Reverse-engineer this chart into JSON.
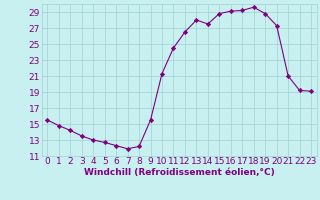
{
  "x": [
    0,
    1,
    2,
    3,
    4,
    5,
    6,
    7,
    8,
    9,
    10,
    11,
    12,
    13,
    14,
    15,
    16,
    17,
    18,
    19,
    20,
    21,
    22,
    23
  ],
  "y": [
    15.5,
    14.8,
    14.2,
    13.5,
    13.0,
    12.7,
    12.3,
    11.9,
    12.2,
    15.5,
    21.3,
    24.5,
    26.5,
    28.0,
    27.5,
    28.8,
    29.1,
    29.2,
    29.6,
    28.8,
    27.3,
    21.0,
    19.2,
    19.1
  ],
  "line_color": "#800080",
  "marker_color": "#800080",
  "bg_color": "#c8f0f0",
  "grid_color": "#a0d0d0",
  "tick_color": "#800080",
  "label_color": "#800080",
  "xlabel": "Windchill (Refroidissement éolien,°C)",
  "ylim": [
    11,
    30
  ],
  "xlim": [
    -0.5,
    23.5
  ],
  "yticks": [
    11,
    13,
    15,
    17,
    19,
    21,
    23,
    25,
    27,
    29
  ],
  "xticks": [
    0,
    1,
    2,
    3,
    4,
    5,
    6,
    7,
    8,
    9,
    10,
    11,
    12,
    13,
    14,
    15,
    16,
    17,
    18,
    19,
    20,
    21,
    22,
    23
  ],
  "font_size": 6.5
}
